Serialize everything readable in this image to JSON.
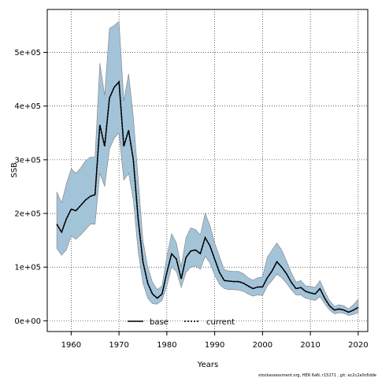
{
  "chart_data": {
    "type": "line",
    "xlabel": "Years",
    "ylabel": "SSB",
    "xlim": [
      1955,
      2022
    ],
    "ylim": [
      -20000,
      580000
    ],
    "x_ticks": [
      1960,
      1970,
      1980,
      1990,
      2000,
      2010,
      2020
    ],
    "y_ticks": [
      0,
      100000,
      200000,
      300000,
      400000,
      500000
    ],
    "y_tick_labels": [
      "0e+00",
      "1e+05",
      "2e+05",
      "3e+05",
      "4e+05",
      "5e+05"
    ],
    "grid": true,
    "legend_position": "bottom-center",
    "colors": {
      "band": "#a3c3d9",
      "band_edge": "#808080",
      "line": "#000000"
    },
    "series": [
      {
        "name": "base",
        "style": "solid",
        "x": [
          1957,
          1958,
          1959,
          1960,
          1961,
          1962,
          1963,
          1964,
          1965,
          1966,
          1967,
          1968,
          1969,
          1970,
          1971,
          1972,
          1973,
          1974,
          1975,
          1976,
          1977,
          1978,
          1979,
          1980,
          1981,
          1982,
          1983,
          1984,
          1985,
          1986,
          1987,
          1988,
          1989,
          1990,
          1991,
          1992,
          1993,
          1994,
          1995,
          1996,
          1997,
          1998,
          1999,
          2000,
          2001,
          2002,
          2003,
          2004,
          2005,
          2006,
          2007,
          2008,
          2009,
          2010,
          2011,
          2012,
          2013,
          2014,
          2015,
          2016,
          2017,
          2018,
          2019,
          2020
        ],
        "values": [
          180000,
          165000,
          190000,
          208000,
          205000,
          215000,
          225000,
          232000,
          235000,
          365000,
          325000,
          415000,
          435000,
          445000,
          325000,
          355000,
          300000,
          190000,
          110000,
          70000,
          50000,
          42000,
          50000,
          90000,
          125000,
          115000,
          78000,
          118000,
          130000,
          132000,
          125000,
          155000,
          140000,
          115000,
          90000,
          75000,
          74000,
          73000,
          73000,
          70000,
          65000,
          60000,
          63000,
          63000,
          80000,
          93000,
          110000,
          100000,
          88000,
          72000,
          60000,
          62000,
          55000,
          52000,
          50000,
          60000,
          42000,
          28000,
          20000,
          22000,
          20000,
          16000,
          20000,
          25000
        ],
        "lower": [
          135000,
          122000,
          132000,
          158000,
          152000,
          160000,
          170000,
          180000,
          180000,
          275000,
          250000,
          320000,
          340000,
          350000,
          262000,
          275000,
          225000,
          130000,
          70000,
          42000,
          32000,
          31000,
          38000,
          65000,
          100000,
          92000,
          62000,
          90000,
          100000,
          102000,
          96000,
          120000,
          108000,
          85000,
          68000,
          60000,
          58000,
          58000,
          57000,
          55000,
          50000,
          46000,
          48000,
          47000,
          65000,
          75000,
          87000,
          80000,
          70000,
          58000,
          48000,
          48000,
          42000,
          40000,
          38000,
          45000,
          32000,
          20000,
          13000,
          15000,
          14000,
          10000,
          12000,
          15000
        ],
        "upper": [
          240000,
          220000,
          255000,
          283000,
          275000,
          285000,
          298000,
          305000,
          305000,
          480000,
          420000,
          545000,
          550000,
          558000,
          410000,
          460000,
          380000,
          265000,
          150000,
          100000,
          72000,
          58000,
          65000,
          120000,
          162000,
          145000,
          100000,
          155000,
          173000,
          170000,
          160000,
          200000,
          178000,
          145000,
          120000,
          95000,
          93000,
          92000,
          92000,
          88000,
          80000,
          76000,
          80000,
          82000,
          118000,
          132000,
          145000,
          132000,
          112000,
          90000,
          72000,
          75000,
          65000,
          64000,
          62000,
          75000,
          55000,
          38000,
          27000,
          30000,
          28000,
          22000,
          30000,
          40000
        ]
      },
      {
        "name": "current",
        "style": "dotted",
        "x": [
          1957,
          1958,
          1959,
          1960,
          1961,
          1962,
          1963,
          1964,
          1965,
          1966,
          1967,
          1968,
          1969,
          1970,
          1971,
          1972,
          1973,
          1974,
          1975,
          1976,
          1977,
          1978,
          1979,
          1980,
          1981,
          1982,
          1983,
          1984,
          1985,
          1986,
          1987,
          1988,
          1989,
          1990,
          1991,
          1992,
          1993,
          1994,
          1995,
          1996,
          1997,
          1998,
          1999,
          2000,
          2001,
          2002,
          2003,
          2004,
          2005,
          2006,
          2007,
          2008,
          2009,
          2010,
          2011,
          2012,
          2013,
          2014,
          2015,
          2016,
          2017,
          2018,
          2019,
          2020
        ],
        "values": [
          180000,
          165000,
          190000,
          208000,
          205000,
          215000,
          225000,
          232000,
          235000,
          365000,
          325000,
          415000,
          435000,
          445000,
          325000,
          355000,
          300000,
          190000,
          110000,
          70000,
          50000,
          42000,
          50000,
          90000,
          125000,
          115000,
          78000,
          118000,
          130000,
          132000,
          125000,
          155000,
          140000,
          115000,
          90000,
          75000,
          74000,
          73000,
          73000,
          70000,
          65000,
          60000,
          63000,
          63000,
          80000,
          93000,
          110000,
          100000,
          88000,
          72000,
          60000,
          62000,
          55000,
          52000,
          50000,
          60000,
          42000,
          28000,
          20000,
          22000,
          20000,
          16000,
          20000,
          25000
        ]
      }
    ]
  },
  "footer": "stockassessment.org, HER 6aN, r15271 , git: ec2c2a0c6dde"
}
